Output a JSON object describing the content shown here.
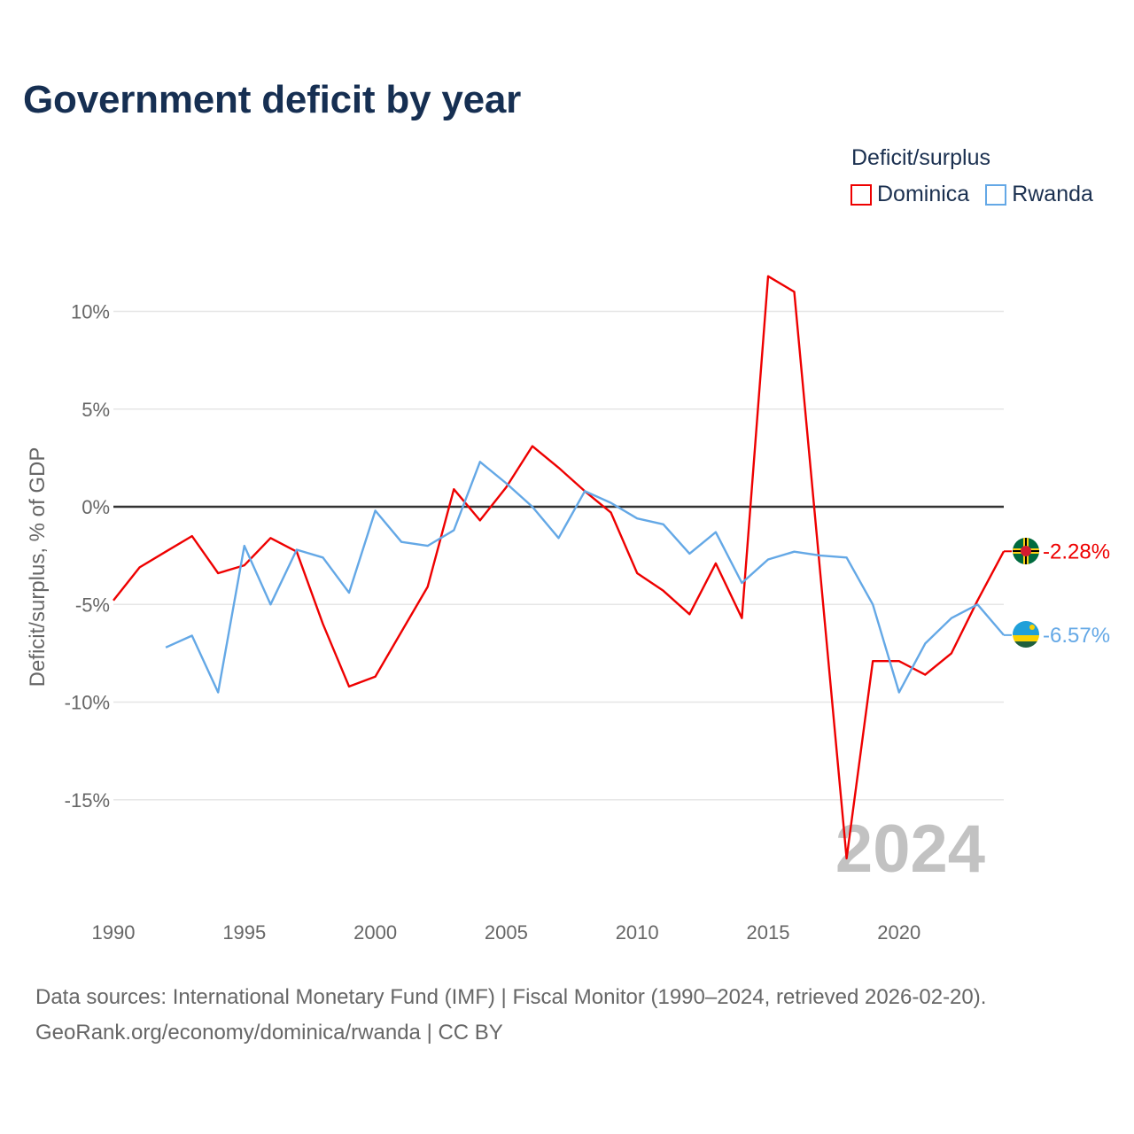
{
  "chart_data": {
    "type": "line",
    "title": "Government deficit by year",
    "ylabel": "Deficit/surplus, % of GDP",
    "xlabel": "",
    "xlim": [
      1990,
      2024
    ],
    "ylim": [
      -20,
      13
    ],
    "x_ticks": [
      1990,
      1995,
      2000,
      2005,
      2010,
      2015,
      2020
    ],
    "y_ticks": [
      10,
      5,
      0,
      -5,
      -10,
      -15
    ],
    "y_tick_labels": [
      "10%",
      "5%",
      "0%",
      "-5%",
      "-10%",
      "-15%"
    ],
    "legend_title": "Deficit/surplus",
    "watermark_year": "2024",
    "series": [
      {
        "name": "Dominica",
        "color": "#ee0000",
        "end_label": "-2.28%",
        "flag_icon": "dominica-flag-icon",
        "points": [
          [
            1990,
            -4.8
          ],
          [
            1991,
            -3.1
          ],
          [
            1992,
            -2.3
          ],
          [
            1993,
            -1.5
          ],
          [
            1994,
            -3.4
          ],
          [
            1995,
            -3.0
          ],
          [
            1996,
            -1.6
          ],
          [
            1997,
            -2.3
          ],
          [
            1998,
            -6.0
          ],
          [
            1999,
            -9.2
          ],
          [
            2000,
            -8.7
          ],
          [
            2001,
            -6.4
          ],
          [
            2002,
            -4.1
          ],
          [
            2003,
            0.9
          ],
          [
            2004,
            -0.7
          ],
          [
            2005,
            1.0
          ],
          [
            2006,
            3.1
          ],
          [
            2007,
            2.0
          ],
          [
            2008,
            0.8
          ],
          [
            2009,
            -0.3
          ],
          [
            2010,
            -3.4
          ],
          [
            2011,
            -4.3
          ],
          [
            2012,
            -5.5
          ],
          [
            2013,
            -2.9
          ],
          [
            2014,
            -5.7
          ],
          [
            2015,
            11.8
          ],
          [
            2016,
            11.0
          ],
          [
            2017,
            -3.5
          ],
          [
            2018,
            -18.0
          ],
          [
            2019,
            -7.9
          ],
          [
            2020,
            -7.9
          ],
          [
            2021,
            -8.6
          ],
          [
            2022,
            -7.5
          ],
          [
            2023,
            -4.8
          ],
          [
            2024,
            -2.28
          ]
        ]
      },
      {
        "name": "Rwanda",
        "color": "#64a8e6",
        "end_label": "-6.57%",
        "flag_icon": "rwanda-flag-icon",
        "points": [
          [
            1992,
            -7.2
          ],
          [
            1993,
            -6.6
          ],
          [
            1994,
            -9.5
          ],
          [
            1995,
            -2.0
          ],
          [
            1996,
            -5.0
          ],
          [
            1997,
            -2.2
          ],
          [
            1998,
            -2.6
          ],
          [
            1999,
            -4.4
          ],
          [
            2000,
            -0.2
          ],
          [
            2001,
            -1.8
          ],
          [
            2002,
            -2.0
          ],
          [
            2003,
            -1.2
          ],
          [
            2004,
            2.3
          ],
          [
            2005,
            1.2
          ],
          [
            2006,
            0.0
          ],
          [
            2007,
            -1.6
          ],
          [
            2008,
            0.8
          ],
          [
            2009,
            0.2
          ],
          [
            2010,
            -0.6
          ],
          [
            2011,
            -0.9
          ],
          [
            2012,
            -2.4
          ],
          [
            2013,
            -1.3
          ],
          [
            2014,
            -3.9
          ],
          [
            2015,
            -2.7
          ],
          [
            2016,
            -2.3
          ],
          [
            2017,
            -2.5
          ],
          [
            2018,
            -2.6
          ],
          [
            2019,
            -5.0
          ],
          [
            2020,
            -9.5
          ],
          [
            2021,
            -7.0
          ],
          [
            2022,
            -5.7
          ],
          [
            2023,
            -5.0
          ],
          [
            2024,
            -6.57
          ]
        ]
      }
    ]
  },
  "footer": {
    "line1": "Data sources: International Monetary Fund (IMF) | Fiscal Monitor (1990–2024, retrieved 2026-02-20).",
    "line2": "GeoRank.org/economy/dominica/rwanda | CC BY"
  }
}
